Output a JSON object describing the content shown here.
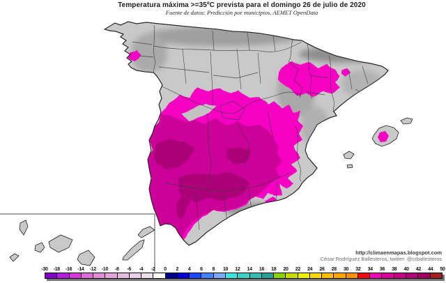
{
  "header": {
    "title": "Temperatura máxima >=35ºC prevista para el domingo 26 de julio de 2020",
    "subtitle": "Fuente de datos: Predicción por municipios. AEMET OpenData"
  },
  "attribution": {
    "line1": "http://climaenmapas.blogspot.com",
    "line2": "César Rodríguez Ballesteros, twitter: @crballesteros"
  },
  "colorbar": {
    "ticks": [
      "-30",
      "-18",
      "-16",
      "-14",
      "-12",
      "-10",
      "-8",
      "-6",
      "-4",
      "-2",
      "0",
      "2",
      "4",
      "6",
      "8",
      "10",
      "12",
      "14",
      "16",
      "18",
      "20",
      "22",
      "24",
      "26",
      "28",
      "30",
      "32",
      "34",
      "36",
      "38",
      "40",
      "42",
      "44",
      "50"
    ],
    "cell_colors": [
      "#8200C8",
      "#B41EE0",
      "#D23CD2",
      "#DC6EDC",
      "#E08CD7",
      "#E3A5DA",
      "#E6BCDF",
      "#EAD0E6",
      "#EEE0EC",
      "#FFFFFF",
      "#00008C",
      "#0000D2",
      "#1E46FF",
      "#4682FF",
      "#78AAFF",
      "#3CE6DC",
      "#3CD2C8",
      "#32BEB4",
      "#28A096",
      "#8CD200",
      "#C8DC00",
      "#EEEE00",
      "#FFD800",
      "#FFBE00",
      "#FFA500",
      "#FF9100",
      "#F00A14",
      "#F500B4",
      "#DC0096",
      "#C80087",
      "#B40078",
      "#A00064",
      "#A02020"
    ]
  },
  "colors": {
    "land_gray": "#c9c9c9",
    "heat_35_38": "#f702c4",
    "heat_38_40": "#cc0099",
    "heat_40_plus": "#ab0077",
    "hole_gray": "#c2c2c2"
  }
}
